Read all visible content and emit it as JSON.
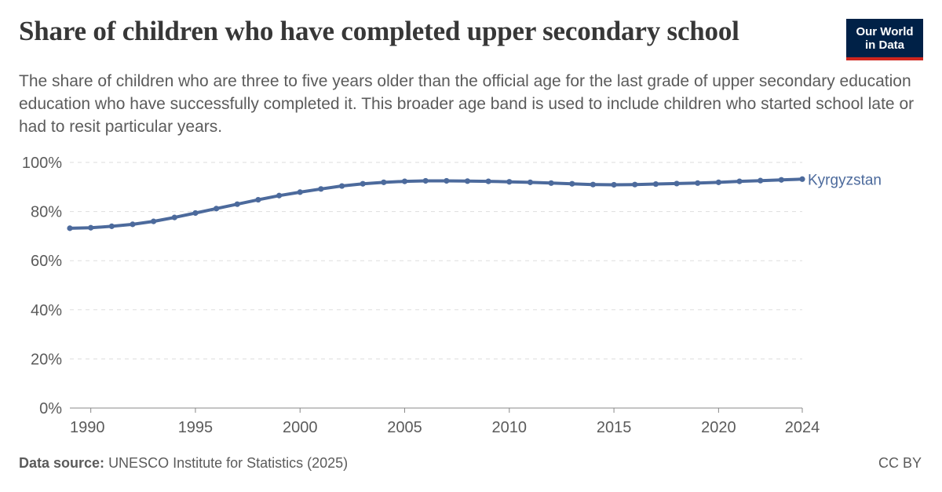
{
  "header": {
    "title": "Share of children who have completed upper secondary school",
    "subtitle": "The share of children who are three to five years older than the official age for the last grade of upper secondary education education who have successfully completed it. This broader age band is used to include children who started school late or had to resit particular years."
  },
  "logo": {
    "line1": "Our World",
    "line2": "in Data"
  },
  "footer": {
    "source_label": "Data source:",
    "source_text": "UNESCO Institute for Statistics (2025)",
    "license": "CC BY"
  },
  "colors": {
    "series": "#4c6a9c",
    "grid": "#dddddd",
    "axis": "#5b5b5b",
    "logo_bg": "#002147",
    "logo_accent": "#ce261e"
  },
  "chart_data": {
    "type": "line",
    "title": "Share of children who have completed upper secondary school",
    "xlabel": "",
    "ylabel": "",
    "xlim": [
      1989,
      2024
    ],
    "ylim": [
      0,
      100
    ],
    "y_ticks": [
      0,
      20,
      40,
      60,
      80,
      100
    ],
    "y_tick_labels": [
      "0%",
      "20%",
      "40%",
      "60%",
      "80%",
      "100%"
    ],
    "x_ticks": [
      1990,
      1995,
      2000,
      2005,
      2010,
      2015,
      2020,
      2024
    ],
    "x_tick_labels": [
      "1990",
      "1995",
      "2000",
      "2005",
      "2010",
      "2015",
      "2020",
      "2024"
    ],
    "grid": "horizontal dashed",
    "series": [
      {
        "name": "Kyrgyzstan",
        "x": [
          1989,
          1990,
          1991,
          1992,
          1993,
          1994,
          1995,
          1996,
          1997,
          1998,
          1999,
          2000,
          2001,
          2002,
          2003,
          2004,
          2005,
          2006,
          2007,
          2008,
          2009,
          2010,
          2011,
          2012,
          2013,
          2014,
          2015,
          2016,
          2017,
          2018,
          2019,
          2020,
          2021,
          2022,
          2023,
          2024
        ],
        "y": [
          73.2,
          73.4,
          74.0,
          74.8,
          76.0,
          77.6,
          79.4,
          81.2,
          83.0,
          84.8,
          86.5,
          87.9,
          89.2,
          90.4,
          91.3,
          91.9,
          92.3,
          92.5,
          92.5,
          92.4,
          92.3,
          92.1,
          91.9,
          91.6,
          91.3,
          91.0,
          90.9,
          91.0,
          91.2,
          91.4,
          91.6,
          91.9,
          92.3,
          92.6,
          92.9,
          93.2
        ]
      }
    ]
  }
}
